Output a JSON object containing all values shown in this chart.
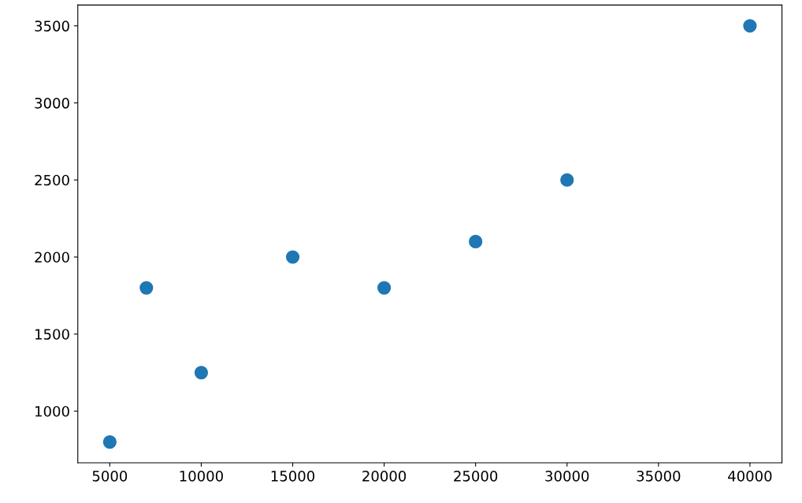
{
  "chart_data": {
    "type": "scatter",
    "x": [
      5000,
      7000,
      10000,
      15000,
      20000,
      25000,
      30000,
      40000
    ],
    "series": [
      {
        "color": "#1f77b4",
        "values": [
          800,
          1800,
          1250,
          2000,
          1800,
          2100,
          2500,
          3500
        ]
      }
    ],
    "xlim": [
      3250,
      41750
    ],
    "ylim": [
      665,
      3635
    ],
    "xticks": [
      5000,
      10000,
      15000,
      20000,
      25000,
      30000,
      35000,
      40000
    ],
    "yticks": [
      1000,
      1500,
      2000,
      2500,
      3000,
      3500
    ],
    "marker": "circle",
    "grid": false,
    "legend": false
  }
}
